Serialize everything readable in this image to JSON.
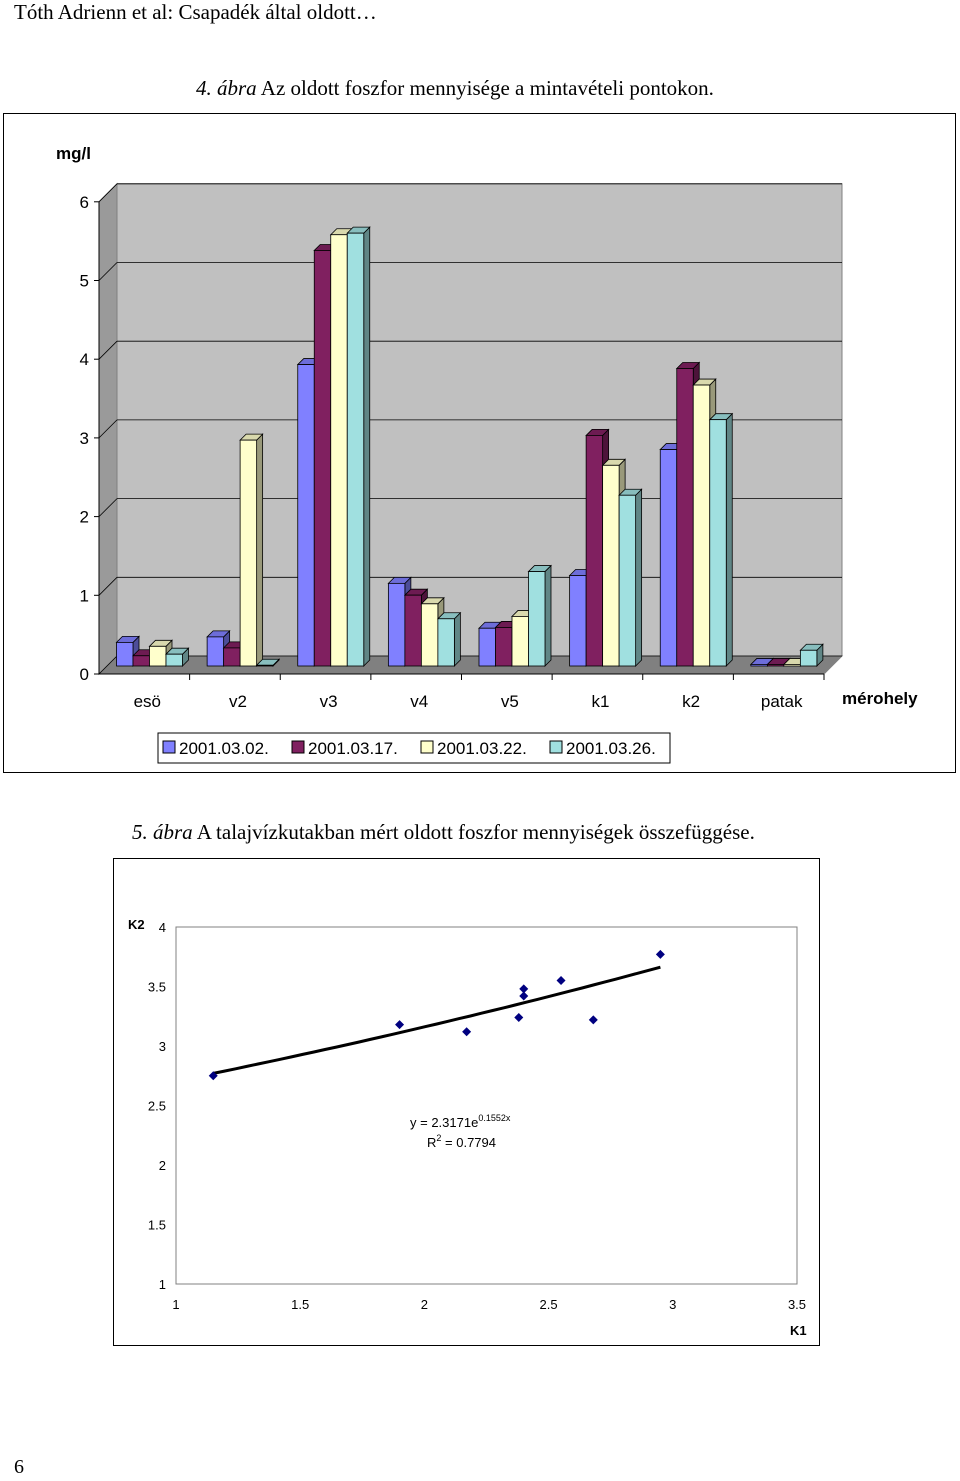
{
  "header": {
    "text": "Tóth Adrienn et al: Csapadék által oldott…"
  },
  "figure1": {
    "caption_number": "4. ábra",
    "caption_text": " Az oldott foszfor mennyisége a mintavételi pontokon."
  },
  "figure2": {
    "caption_number": "5. ábra",
    "caption_text": " A talajvízkutakban mért oldott foszfor mennyiségek összefüggése."
  },
  "page_number": "6",
  "chart_data": [
    {
      "type": "bar",
      "title": "",
      "ylabel": "mg/l",
      "xlabel": "mérohely",
      "ylim": [
        0,
        6
      ],
      "yticks": [
        "0",
        "1",
        "2",
        "3",
        "4",
        "5",
        "6"
      ],
      "categories": [
        "esö",
        "v2",
        "v3",
        "v4",
        "v5",
        "k1",
        "k2",
        "patak"
      ],
      "legend_position": "bottom",
      "grid": true,
      "series": [
        {
          "name": "2001.03.02.",
          "color": "#8080ff",
          "values": [
            0.3,
            0.37,
            3.83,
            1.05,
            0.48,
            1.15,
            2.75,
            0.02
          ]
        },
        {
          "name": "2001.03.17.",
          "color": "#802060",
          "values": [
            0.13,
            0.23,
            5.28,
            0.9,
            0.49,
            2.93,
            3.78,
            0.02
          ]
        },
        {
          "name": "2001.03.22.",
          "color": "#ffffcc",
          "values": [
            0.25,
            2.87,
            5.48,
            0.79,
            0.63,
            2.55,
            3.57,
            0.02
          ]
        },
        {
          "name": "2001.03.26.",
          "color": "#a0e0e0",
          "values": [
            0.15,
            0.01,
            5.5,
            0.6,
            1.2,
            2.17,
            3.13,
            0.2
          ]
        }
      ]
    },
    {
      "type": "scatter",
      "title": "",
      "xlabel": "K1",
      "ylabel": "K2",
      "xlim": [
        1,
        3.5
      ],
      "ylim": [
        1,
        4
      ],
      "xticks": [
        "1",
        "1.5",
        "2",
        "2.5",
        "3",
        "3.5"
      ],
      "yticks": [
        "1",
        "1.5",
        "2",
        "2.5",
        "3",
        "3.5",
        "4"
      ],
      "grid": false,
      "point_color": "#000080",
      "points": [
        {
          "x": 1.15,
          "y": 2.75
        },
        {
          "x": 1.9,
          "y": 3.18
        },
        {
          "x": 2.17,
          "y": 3.12
        },
        {
          "x": 2.38,
          "y": 3.24
        },
        {
          "x": 2.4,
          "y": 3.42
        },
        {
          "x": 2.4,
          "y": 3.48
        },
        {
          "x": 2.55,
          "y": 3.55
        },
        {
          "x": 2.68,
          "y": 3.22
        },
        {
          "x": 2.95,
          "y": 3.77
        }
      ],
      "trendline": {
        "type": "exponential",
        "a": 2.3171,
        "b": 0.1552,
        "x_range": [
          1.15,
          2.95
        ],
        "equation_prefix": "y = 2.3171e",
        "equation_exp": "0.1552x",
        "r2_prefix": "R",
        "r2_sup": "2",
        "r2_suffix": " = 0.7794"
      }
    }
  ]
}
